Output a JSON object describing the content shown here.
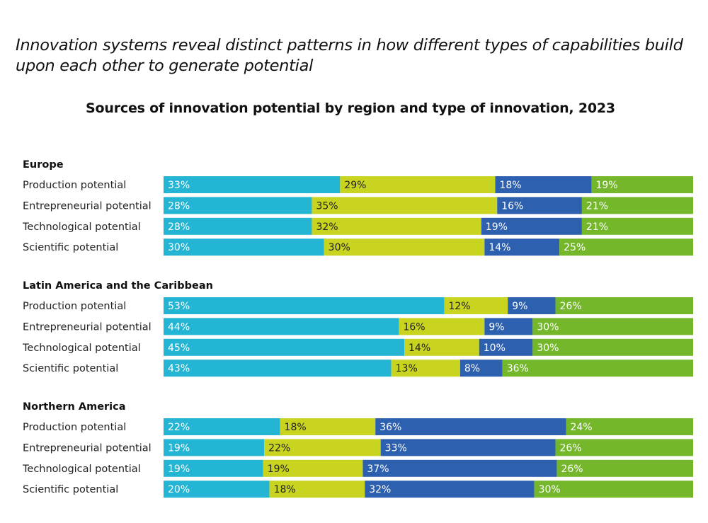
{
  "headline": "Innovation systems reveal distinct patterns in how different types of capabilities build upon each other to generate potential",
  "chart_data": {
    "type": "bar",
    "orientation": "horizontal",
    "stacked": "100%",
    "title": "Sources of innovation potential by region and type of innovation, 2023",
    "xlabel": "",
    "ylabel": "",
    "xlim": [
      0,
      100
    ],
    "grid": false,
    "legend": "none",
    "unit": "%",
    "series_colors": [
      "#23B5D3",
      "#C9D420",
      "#2D60AE",
      "#74B72B"
    ],
    "label_colors": [
      "#ffffff",
      "#222222",
      "#ffffff",
      "#ffffff"
    ],
    "groups": [
      {
        "name": "Europe",
        "rows": [
          {
            "label": "Production potential",
            "values": [
              33,
              29,
              18,
              19
            ]
          },
          {
            "label": "Entrepreneurial potential",
            "values": [
              28,
              35,
              16,
              21
            ]
          },
          {
            "label": "Technological potential",
            "values": [
              28,
              32,
              19,
              21
            ]
          },
          {
            "label": "Scientific potential",
            "values": [
              30,
              30,
              14,
              25
            ]
          }
        ]
      },
      {
        "name": "Latin America and the Caribbean",
        "rows": [
          {
            "label": "Production potential",
            "values": [
              53,
              12,
              9,
              26
            ]
          },
          {
            "label": "Entrepreneurial potential",
            "values": [
              44,
              16,
              9,
              30
            ]
          },
          {
            "label": "Technological potential",
            "values": [
              45,
              14,
              10,
              30
            ]
          },
          {
            "label": "Scientific potential",
            "values": [
              43,
              13,
              8,
              36
            ]
          }
        ]
      },
      {
        "name": "Northern America",
        "rows": [
          {
            "label": "Production potential",
            "values": [
              22,
              18,
              36,
              24
            ]
          },
          {
            "label": "Entrepreneurial potential",
            "values": [
              19,
              22,
              33,
              26
            ]
          },
          {
            "label": "Technological potential",
            "values": [
              19,
              19,
              37,
              26
            ]
          },
          {
            "label": "Scientific potential",
            "values": [
              20,
              18,
              32,
              30
            ]
          }
        ]
      }
    ]
  }
}
